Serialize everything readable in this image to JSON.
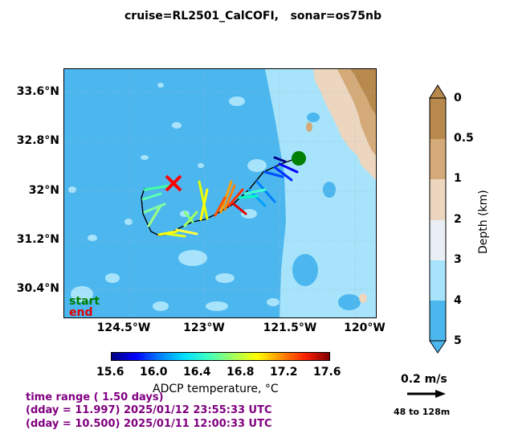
{
  "title": "cruise=RL2501_CalCOFI,   sonar=os75nb",
  "map": {
    "lat_ticks": [
      "33.6°N",
      "32.8°N",
      "32°N",
      "31.2°N",
      "30.4°N"
    ],
    "lon_ticks": [
      "124.5°W",
      "123°W",
      "121.5°W",
      "120°W"
    ],
    "legend": {
      "start": "start",
      "end": "end",
      "start_color": "#008000",
      "end_color": "#e00000"
    }
  },
  "temperature_colorbar": {
    "ticks": [
      "15.6",
      "16.0",
      "16.4",
      "16.8",
      "17.2",
      "17.6"
    ],
    "label": "ADCP temperature, °C"
  },
  "depth_colorbar": {
    "ticks": [
      "0",
      "0.5",
      "1",
      "2",
      "3",
      "4",
      "5"
    ],
    "label": "Depth (km)",
    "colors": [
      "#b8894c",
      "#d4ab78",
      "#ecd6bf",
      "#e9eff4",
      "#a7e3fb",
      "#4cb7ef"
    ]
  },
  "reference_vector": {
    "speed": "0.2 m/s",
    "depth_range": "48 to 128m"
  },
  "time_info": {
    "range": "time range ( 1.50 days)",
    "end": "(dday = 11.997) 2025/01/12 23:55:33 UTC",
    "start": "(dday = 10.500) 2025/01/11 12:00:33 UTC"
  },
  "colors": {
    "info_text": "#800080",
    "ocean_deep": "#4cb7ef",
    "ocean_shallow": "#a7e3fb",
    "land": "#d8b48a"
  }
}
